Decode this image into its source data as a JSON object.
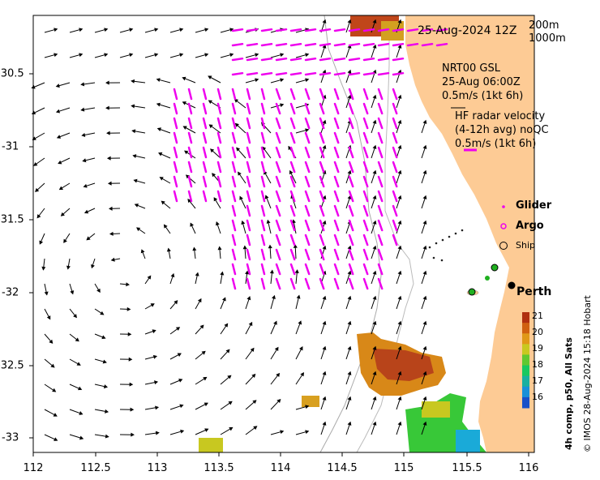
{
  "header": {
    "datetime": "25-Aug-2024 12Z",
    "contour_200": "200m",
    "contour_1000": "1000m"
  },
  "legend": {
    "model_line1": "NRT00 GSL",
    "model_line2": "25-Aug 06:00Z",
    "model_scale": "0.5m/s (1kt 6h)",
    "hf_line1": "HF radar velocity",
    "hf_line2": "(4-12h avg) noQC",
    "hf_scale": "0.5m/s (1kt 6h)",
    "glider": "Glider",
    "argo": "Argo",
    "ship": "Ship",
    "city": "Perth"
  },
  "colorbar": {
    "ticks": [
      "21",
      "20",
      "19",
      "18",
      "17",
      "16"
    ],
    "colors": [
      "#b33a0a",
      "#d97a10",
      "#c9c21a",
      "#18c83a",
      "#18a8d8",
      "#1838c8"
    ],
    "title": "4h comp, p50, All Sats"
  },
  "credit": "© IMOS 28-Aug-2024 15:18 Hobart",
  "axes": {
    "x_ticks": [
      "112",
      "112.5",
      "113",
      "113.5",
      "114",
      "114.5",
      "115",
      "115.5",
      "116"
    ],
    "y_ticks": [
      "-30.5",
      "-31",
      "-31.5",
      "-32",
      "-32.5",
      "-33"
    ]
  },
  "colors": {
    "land": "#fdcb95",
    "hf_arrows": "#ee00ee",
    "model_arrows": "#000000",
    "contour": "#aaaaaa"
  }
}
